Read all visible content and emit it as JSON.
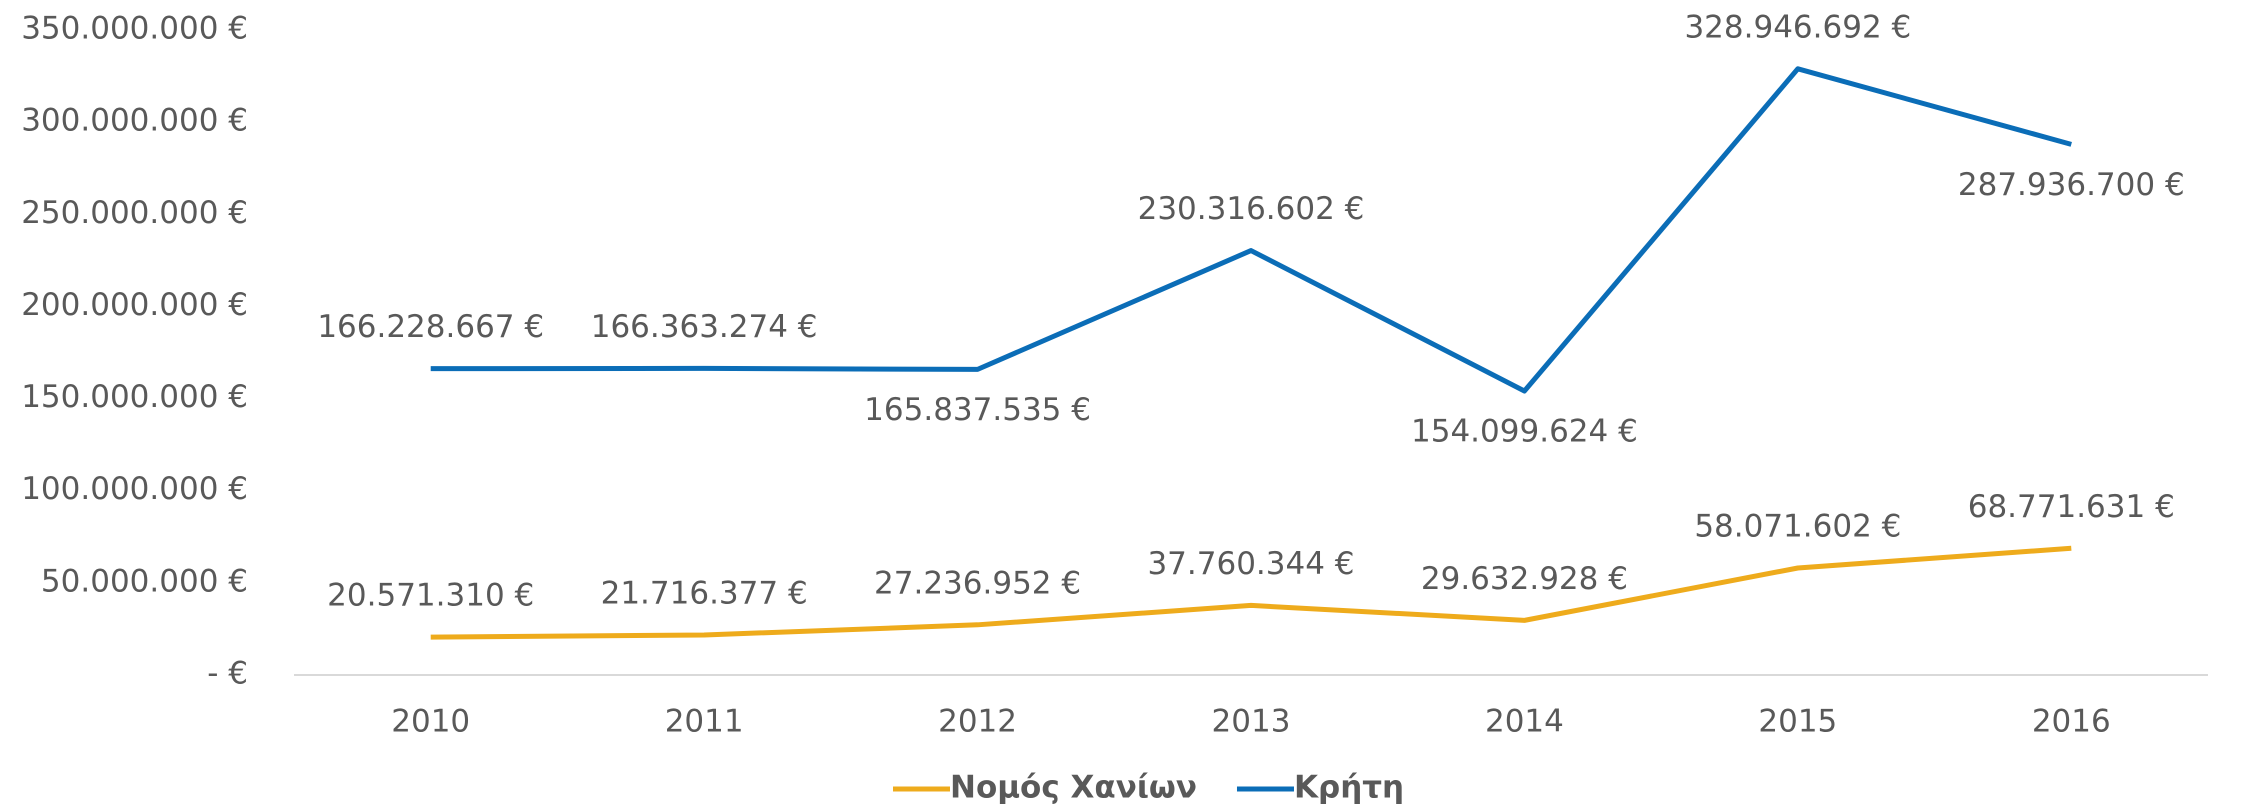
{
  "chart_data": {
    "type": "line",
    "categories": [
      "2010",
      "2011",
      "2012",
      "2013",
      "2014",
      "2015",
      "2016"
    ],
    "series": [
      {
        "name": "Νομός Χανίων",
        "color": "#eeab1c",
        "values": [
          20571310,
          21716377,
          27236952,
          37760344,
          29632928,
          58071602,
          68771631
        ],
        "value_labels": [
          "20.571.310 €",
          "21.716.377 €",
          "27.236.952 €",
          "37.760.344 €",
          "29.632.928 €",
          "58.071.602 €",
          "68.771.631 €"
        ]
      },
      {
        "name": "Κρήτη",
        "color": "#0b6db7",
        "values": [
          166228667,
          166363274,
          165837535,
          230316602,
          154099624,
          328946692,
          287936700
        ],
        "value_labels": [
          "166.228.667 €",
          "166.363.274 €",
          "165.837.535 €",
          "230.316.602 €",
          "154.099.624 €",
          "328.946.692 €",
          "287.936.700 €"
        ]
      }
    ],
    "ylim": [
      0,
      350000000
    ],
    "yticks": [
      {
        "value": 0,
        "label": "- €"
      },
      {
        "value": 50000000,
        "label": "50.000.000 €"
      },
      {
        "value": 100000000,
        "label": "100.000.000 €"
      },
      {
        "value": 150000000,
        "label": "150.000.000 €"
      },
      {
        "value": 200000000,
        "label": "200.000.000 €"
      },
      {
        "value": 250000000,
        "label": "250.000.000 €"
      },
      {
        "value": 300000000,
        "label": "300.000.000 €"
      },
      {
        "value": 350000000,
        "label": "350.000.000 €"
      }
    ],
    "grid": false,
    "legend": "bottom"
  }
}
